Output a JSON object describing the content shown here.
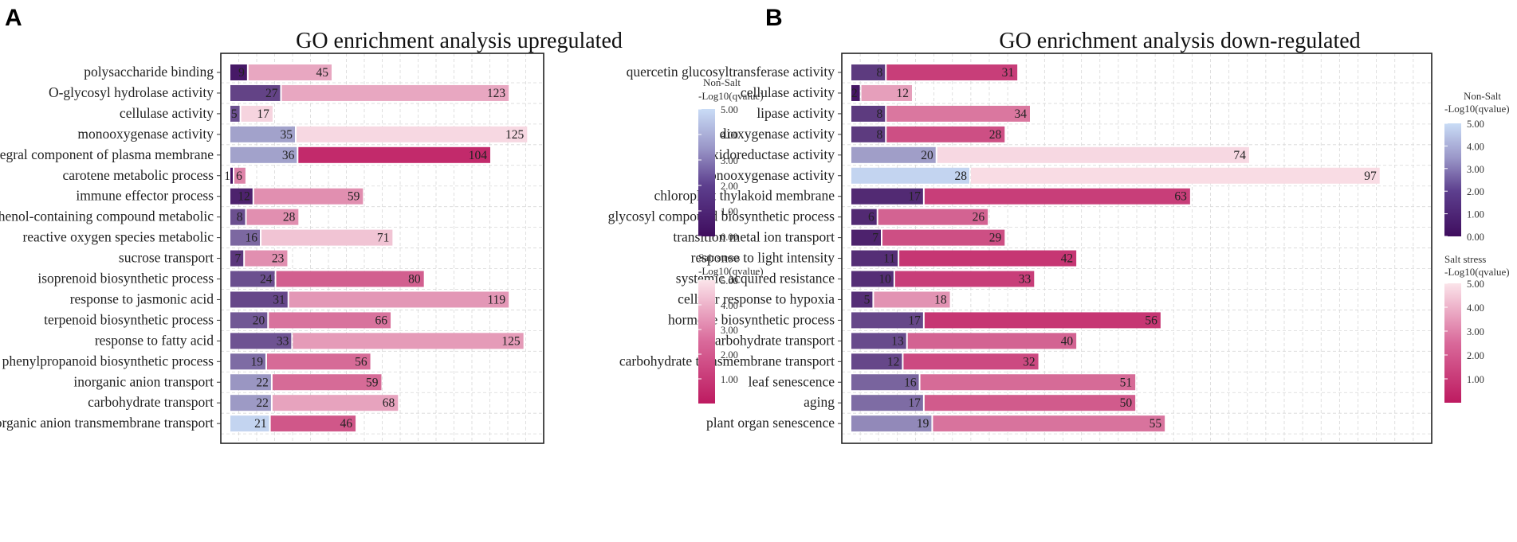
{
  "panels": {
    "a": "A",
    "b": "B"
  },
  "chart_data": [
    {
      "type": "bar",
      "title": "GO enrichment analysis upregulated",
      "categories": [
        "polysaccharide binding",
        "O-glycosyl hydrolase activity",
        "cellulase activity",
        "monooxygenase activity",
        "integral component of plasma membrane",
        "carotene metabolic process",
        "immune effector process",
        "phenol-containing compound metabolic",
        "reactive oxygen species metabolic",
        "sucrose transport",
        "isoprenoid biosynthetic process",
        "response to jasmonic acid",
        "terpenoid biosynthetic process",
        "response to fatty acid",
        "phenylpropanoid biosynthetic process",
        "inorganic anion transport",
        "carbohydrate transport",
        "inorganic anion transmembrane transport"
      ],
      "series": [
        {
          "name": "Non-Salt",
          "values": [
            9,
            27,
            5,
            35,
            36,
            1,
            12,
            8,
            16,
            7,
            24,
            31,
            20,
            33,
            19,
            22,
            22,
            21
          ],
          "color_values": [
            0.3,
            1.3,
            1.6,
            3.6,
            3.6,
            0.1,
            0.5,
            1.6,
            2.2,
            1.0,
            1.6,
            1.4,
            1.8,
            1.7,
            2.3,
            3.3,
            3.4,
            4.8
          ]
        },
        {
          "name": "Salt stress",
          "values": [
            45,
            123,
            17,
            125,
            104,
            6,
            59,
            28,
            71,
            23,
            80,
            119,
            66,
            125,
            56,
            59,
            68,
            46
          ],
          "color_values": [
            3.5,
            3.5,
            4.6,
            4.7,
            0.4,
            2.6,
            2.9,
            2.9,
            4.2,
            2.9,
            1.7,
            3.1,
            2.2,
            3.2,
            2.0,
            2.0,
            3.4,
            1.5
          ]
        }
      ],
      "xlim": [
        0,
        175
      ],
      "grid": true,
      "legends": [
        {
          "title_line1": "Non-Salt",
          "title_line2": "-Log10(qvalue)",
          "ticks": [
            "5.00",
            "4.00",
            "3.00",
            "2.00",
            "1.00",
            "0.00"
          ]
        },
        {
          "title_line1": "Salt stress",
          "title_line2": "-Log10(qvalue)",
          "ticks": [
            "5.00",
            "4.00",
            "3.00",
            "2.00",
            "1.00"
          ]
        }
      ]
    },
    {
      "type": "bar",
      "title": "GO enrichment analysis down-regulated",
      "categories": [
        "quercetin glucosyltransferase activity",
        "cellulase activity",
        "lipase activity",
        "dioxygenase activity",
        "oxidoreductase activity",
        "monooxygenase activity",
        "chloroplast thylakoid membrane",
        "glycosyl compound biosynthetic process",
        "transition metal ion transport",
        "response to light intensity",
        "systemic acquired resistance",
        "cellular response to hypoxia",
        "hormone biosynthetic process",
        "carbohydrate transport",
        "carbohydrate transmembrane transport",
        "leaf senescence",
        "aging",
        "plant organ senescence"
      ],
      "series": [
        {
          "name": "Non-Salt",
          "values": [
            8,
            2,
            8,
            8,
            20,
            28,
            17,
            6,
            7,
            11,
            10,
            5,
            17,
            13,
            12,
            16,
            17,
            19
          ],
          "color_values": [
            1.1,
            0.2,
            1.1,
            1.1,
            3.5,
            4.8,
            0.7,
            0.7,
            0.5,
            0.8,
            0.8,
            0.8,
            1.4,
            1.5,
            1.4,
            2.1,
            2.3,
            3.0
          ]
        },
        {
          "name": "Salt stress",
          "values": [
            31,
            12,
            34,
            28,
            74,
            97,
            63,
            26,
            29,
            42,
            33,
            18,
            56,
            40,
            32,
            51,
            50,
            55
          ],
          "color_values": [
            0.9,
            3.3,
            2.3,
            1.3,
            4.7,
            4.8,
            0.9,
            1.8,
            1.3,
            0.7,
            0.9,
            3.0,
            0.7,
            1.8,
            1.2,
            2.0,
            1.6,
            2.2
          ]
        }
      ],
      "xlim": [
        0,
        140
      ],
      "grid": true,
      "legends": [
        {
          "title_line1": "Non-Salt",
          "title_line2": "-Log10(qvalue)",
          "ticks": [
            "5.00",
            "4.00",
            "3.00",
            "2.00",
            "1.00",
            "0.00"
          ]
        },
        {
          "title_line1": "Salt stress",
          "title_line2": "-Log10(qvalue)",
          "ticks": [
            "5.00",
            "4.00",
            "3.00",
            "2.00",
            "1.00"
          ]
        }
      ]
    }
  ],
  "colors": {
    "nonsalt_low": "#3f0d5e",
    "nonsalt_high": "#c9dcf6",
    "salt_low": "#bd1a60",
    "salt_high": "#fbe4ea",
    "panel_border": "#222222",
    "grid": "#d8d8d8"
  }
}
